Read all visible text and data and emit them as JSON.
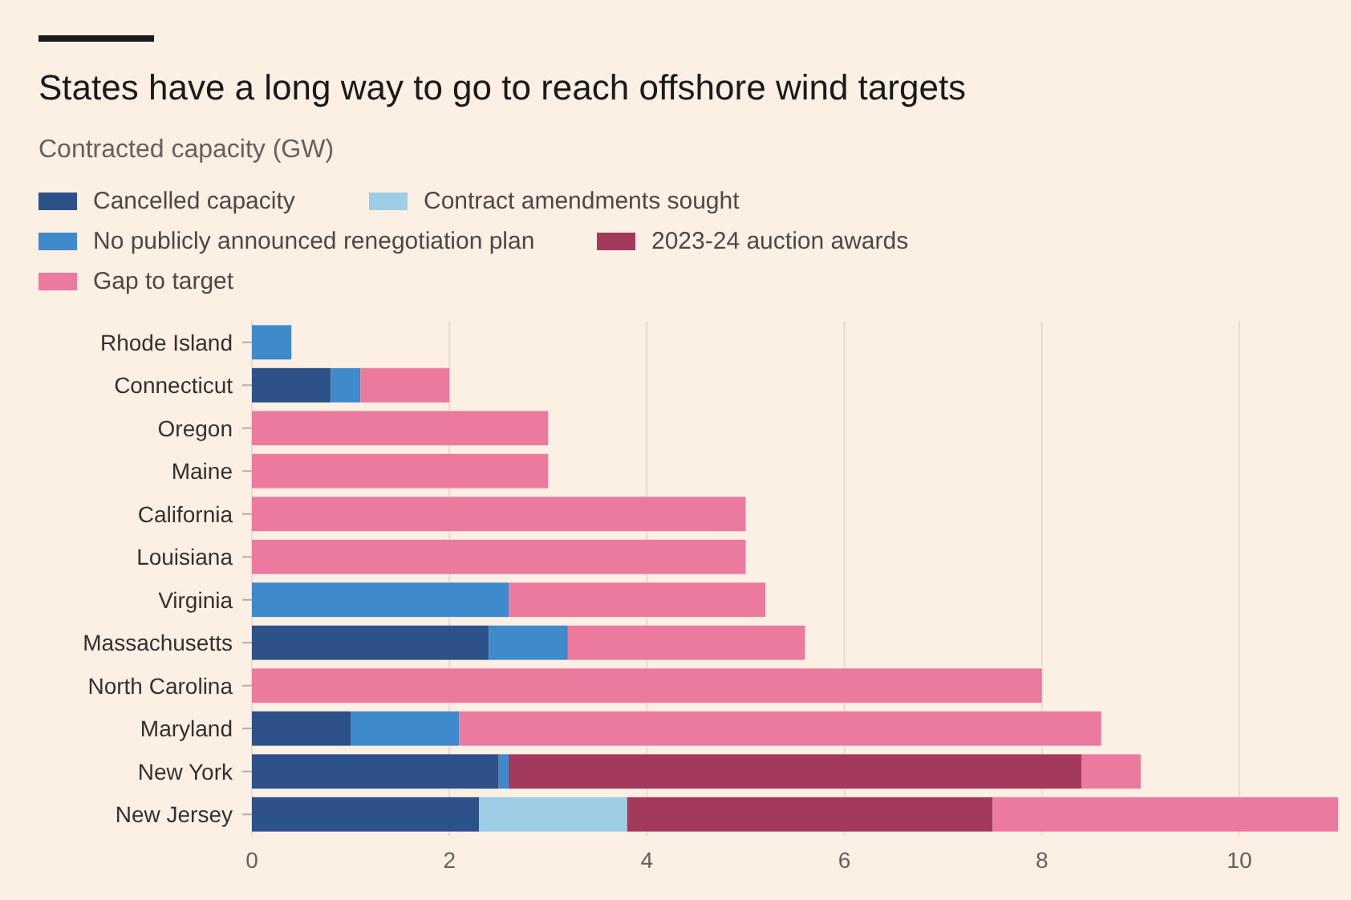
{
  "chart_data": {
    "type": "bar",
    "orientation": "horizontal",
    "stacked": true,
    "title": "States have a long way to go to reach offshore wind targets",
    "subtitle": "Contracted capacity (GW)",
    "categories": [
      "Rhode Island",
      "Connecticut",
      "Oregon",
      "Maine",
      "California",
      "Louisiana",
      "Virginia",
      "Massachusetts",
      "North Carolina",
      "Maryland",
      "New York",
      "New Jersey"
    ],
    "series": [
      {
        "name": "Cancelled capacity",
        "color": "#2d5189",
        "values": [
          null,
          0.8,
          null,
          null,
          null,
          null,
          null,
          2.4,
          null,
          1.0,
          2.5,
          2.3
        ]
      },
      {
        "name": "Contract amendments sought",
        "color": "#9ecde6",
        "values": [
          null,
          null,
          null,
          null,
          null,
          null,
          null,
          null,
          null,
          null,
          null,
          1.5
        ]
      },
      {
        "name": "No publicly announced renegotiation plan",
        "color": "#3f8acb",
        "values": [
          0.4,
          0.3,
          null,
          null,
          null,
          null,
          2.6,
          0.8,
          null,
          1.1,
          0.1,
          null
        ]
      },
      {
        "name": "2023-24 auction awards",
        "color": "#a33a5e",
        "values": [
          null,
          null,
          null,
          null,
          null,
          null,
          null,
          null,
          null,
          null,
          5.8,
          3.7
        ]
      },
      {
        "name": "Gap to target",
        "color": "#eb7a9e",
        "values": [
          null,
          0.9,
          3,
          3,
          5,
          5,
          2.6,
          2.4,
          8,
          6.5,
          0.6,
          3.5
        ]
      }
    ],
    "xlim": [
      0,
      11
    ],
    "xticks": [
      0,
      2,
      4,
      6,
      8,
      10
    ],
    "grid": "x",
    "legend": "top"
  }
}
